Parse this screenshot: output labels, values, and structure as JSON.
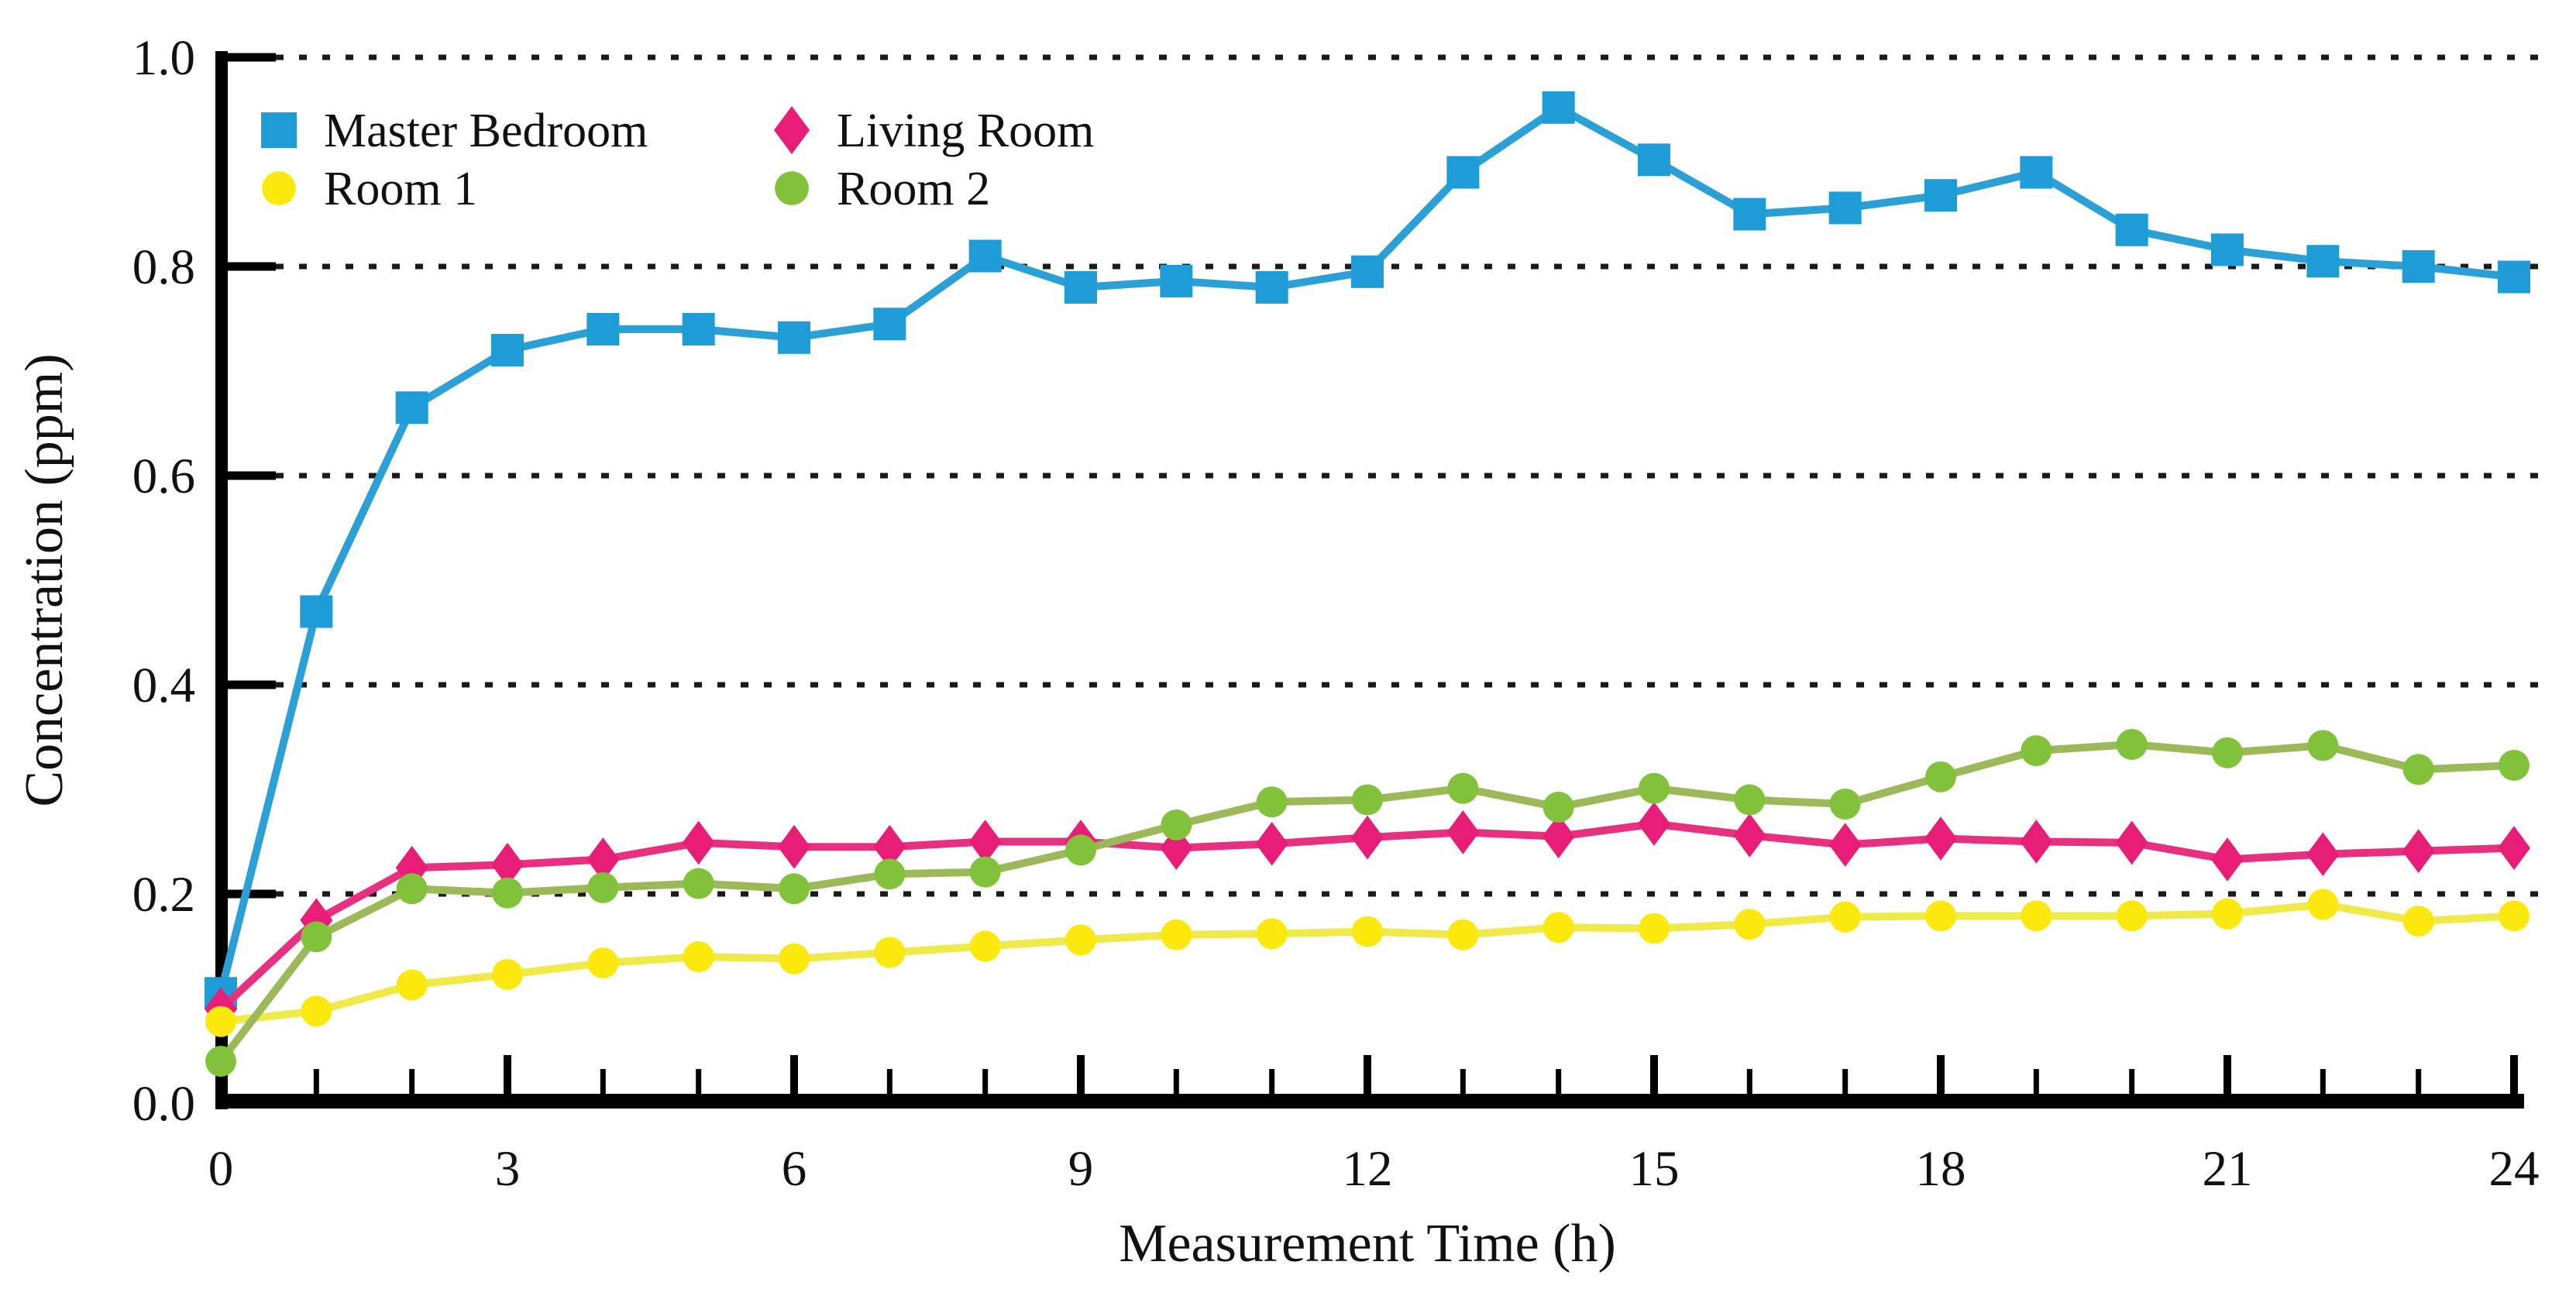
{
  "chart_data": {
    "type": "line",
    "title": "",
    "xlabel": "Measurement Time (h)",
    "ylabel": "Concentration (ppm)",
    "xlim": [
      0,
      24
    ],
    "ylim": [
      0.0,
      1.0
    ],
    "grid": "horizontal dotted black lines at each y tick",
    "legend_position": "inside top-left, two columns, no border",
    "x_minor_tick_step": 1,
    "x_major_ticks": [
      0,
      3,
      6,
      9,
      12,
      15,
      18,
      21,
      24
    ],
    "x_major_tick_labels": [
      "0",
      "3",
      "6",
      "9",
      "12",
      "15",
      "18",
      "21",
      "24"
    ],
    "y_ticks": [
      0.0,
      0.2,
      0.4,
      0.6,
      0.8,
      1.0
    ],
    "y_tick_labels": [
      "0.0",
      "0.2",
      "0.4",
      "0.6",
      "0.8",
      "1.0"
    ],
    "x": [
      0,
      1,
      2,
      3,
      4,
      5,
      6,
      7,
      8,
      9,
      10,
      11,
      12,
      13,
      14,
      15,
      16,
      17,
      18,
      19,
      20,
      21,
      22,
      23,
      24
    ],
    "series": [
      {
        "name": "Master Bedroom",
        "marker": "square",
        "color": "#1E9CD8",
        "line_color": "#2AA0D6",
        "values": [
          0.105,
          0.47,
          0.665,
          0.72,
          0.74,
          0.74,
          0.732,
          0.745,
          0.81,
          0.78,
          0.786,
          0.78,
          0.795,
          0.89,
          0.952,
          0.902,
          0.85,
          0.856,
          0.868,
          0.89,
          0.835,
          0.816,
          0.805,
          0.8,
          0.79
        ]
      },
      {
        "name": "Living Room",
        "marker": "diamond",
        "color": "#E81D78",
        "line_color": "#E73080",
        "values": [
          0.09,
          0.175,
          0.225,
          0.228,
          0.233,
          0.249,
          0.245,
          0.245,
          0.25,
          0.25,
          0.244,
          0.248,
          0.254,
          0.259,
          0.255,
          0.267,
          0.256,
          0.247,
          0.253,
          0.25,
          0.249,
          0.233,
          0.238,
          0.241,
          0.244
        ]
      },
      {
        "name": "Room 1",
        "marker": "circle",
        "color": "#FBE90D",
        "line_color": "#F0E94A",
        "values": [
          0.078,
          0.088,
          0.113,
          0.123,
          0.134,
          0.14,
          0.138,
          0.144,
          0.15,
          0.156,
          0.161,
          0.162,
          0.164,
          0.161,
          0.168,
          0.167,
          0.171,
          0.178,
          0.179,
          0.179,
          0.179,
          0.181,
          0.19,
          0.174,
          0.179
        ]
      },
      {
        "name": "Room 2",
        "marker": "circle",
        "color": "#82C23A",
        "line_color": "#9CB95A",
        "values": [
          0.04,
          0.159,
          0.205,
          0.201,
          0.206,
          0.21,
          0.205,
          0.219,
          0.221,
          0.242,
          0.266,
          0.288,
          0.29,
          0.301,
          0.283,
          0.301,
          0.29,
          0.286,
          0.312,
          0.337,
          0.343,
          0.335,
          0.342,
          0.319,
          0.323
        ]
      }
    ],
    "colors": {
      "axis": "#000000",
      "gridline": "#1a1a1a",
      "text": "#111111",
      "background": "#ffffff"
    }
  }
}
